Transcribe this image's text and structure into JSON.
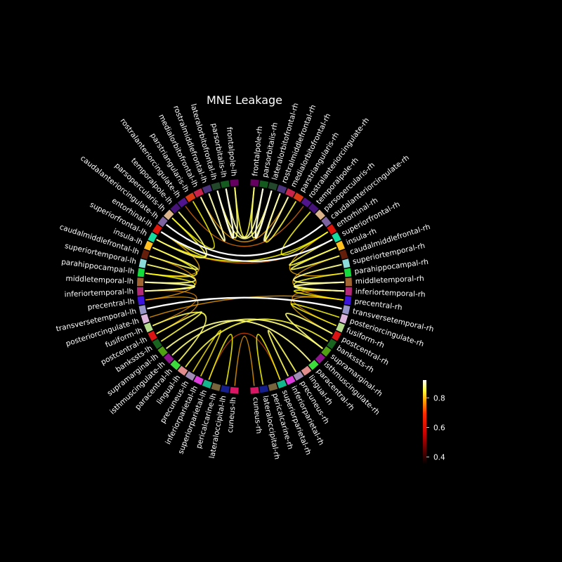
{
  "title": "MNE Leakage",
  "regions": [
    {
      "label": "frontalpole-lh",
      "color": "#64005f"
    },
    {
      "label": "parsorbitalis-lh",
      "color": "#145a1e"
    },
    {
      "label": "lateralorbitofrontal-lh",
      "color": "#23472b"
    },
    {
      "label": "rostralmiddlefrontal-lh",
      "color": "#4b327d"
    },
    {
      "label": "medialorbitofrontal-lh",
      "color": "#c8234b"
    },
    {
      "label": "parstriangularis-lh",
      "color": "#dc3c14"
    },
    {
      "label": "rostralanteriorcingulate-lh",
      "color": "#50148c"
    },
    {
      "label": "temporalpole-lh",
      "color": "#461478"
    },
    {
      "label": "parsopercularis-lh",
      "color": "#dcb48c"
    },
    {
      "label": "caudalanteriorcingulate-lh",
      "color": "#7d64a0"
    },
    {
      "label": "entorhinal-lh",
      "color": "#dc140a"
    },
    {
      "label": "superiorfrontal-lh",
      "color": "#14dca0"
    },
    {
      "label": "insula-lh",
      "color": "#ffc020"
    },
    {
      "label": "caudalmiddlefrontal-lh",
      "color": "#641e0a"
    },
    {
      "label": "superiortemporal-lh",
      "color": "#8cdcdc"
    },
    {
      "label": "parahippocampal-lh",
      "color": "#14dc3c"
    },
    {
      "label": "middletemporal-lh",
      "color": "#a06432"
    },
    {
      "label": "inferiortemporal-lh",
      "color": "#b42878"
    },
    {
      "label": "precentral-lh",
      "color": "#3c14dc"
    },
    {
      "label": "transversetemporal-lh",
      "color": "#9696c8"
    },
    {
      "label": "posteriorcingulate-lh",
      "color": "#dcb4dc"
    },
    {
      "label": "fusiform-lh",
      "color": "#b4dc8c"
    },
    {
      "label": "postcentral-lh",
      "color": "#dc1414"
    },
    {
      "label": "bankssts-lh",
      "color": "#19641e"
    },
    {
      "label": "supramarginal-lh",
      "color": "#50a014"
    },
    {
      "label": "isthmuscingulate-lh",
      "color": "#8c148c"
    },
    {
      "label": "paracentral-lh",
      "color": "#3cdc3c"
    },
    {
      "label": "lingual-lh",
      "color": "#e18c8c"
    },
    {
      "label": "precuneus-lh",
      "color": "#a08cb4"
    },
    {
      "label": "inferiorparietal-lh",
      "color": "#dc3cdc"
    },
    {
      "label": "superiorparietal-lh",
      "color": "#14b48c"
    },
    {
      "label": "pericalcarine-lh",
      "color": "#78643c"
    },
    {
      "label": "lateraloccipital-lh",
      "color": "#141e8c"
    },
    {
      "label": "cuneus-lh",
      "color": "#dc1464"
    },
    {
      "label": "cuneus-rh",
      "color": "#dc1464"
    },
    {
      "label": "lateraloccipital-rh",
      "color": "#141e8c"
    },
    {
      "label": "pericalcarine-rh",
      "color": "#78643c"
    },
    {
      "label": "superiorparietal-rh",
      "color": "#14b48c"
    },
    {
      "label": "inferiorparietal-rh",
      "color": "#dc3cdc"
    },
    {
      "label": "precuneus-rh",
      "color": "#a08cb4"
    },
    {
      "label": "lingual-rh",
      "color": "#e18c8c"
    },
    {
      "label": "paracentral-rh",
      "color": "#3cdc3c"
    },
    {
      "label": "isthmuscingulate-rh",
      "color": "#8c148c"
    },
    {
      "label": "supramarginal-rh",
      "color": "#50a014"
    },
    {
      "label": "bankssts-rh",
      "color": "#19641e"
    },
    {
      "label": "postcentral-rh",
      "color": "#dc1414"
    },
    {
      "label": "fusiform-rh",
      "color": "#b4dc8c"
    },
    {
      "label": "posteriorcingulate-rh",
      "color": "#dcb4dc"
    },
    {
      "label": "transversetemporal-rh",
      "color": "#9696c8"
    },
    {
      "label": "precentral-rh",
      "color": "#3c14dc"
    },
    {
      "label": "inferiortemporal-rh",
      "color": "#b42878"
    },
    {
      "label": "middletemporal-rh",
      "color": "#a06432"
    },
    {
      "label": "parahippocampal-rh",
      "color": "#14dc3c"
    },
    {
      "label": "superiortemporal-rh",
      "color": "#8cdcdc"
    },
    {
      "label": "caudalmiddlefrontal-rh",
      "color": "#641e0a"
    },
    {
      "label": "insula-rh",
      "color": "#ffc020"
    },
    {
      "label": "superiorfrontal-rh",
      "color": "#14dca0"
    },
    {
      "label": "entorhinal-rh",
      "color": "#dc140a"
    },
    {
      "label": "caudalanteriorcingulate-rh",
      "color": "#7d64a0"
    },
    {
      "label": "parsopercularis-rh",
      "color": "#dcb48c"
    },
    {
      "label": "temporalpole-rh",
      "color": "#461478"
    },
    {
      "label": "rostralanteriorcingulate-rh",
      "color": "#50148c"
    },
    {
      "label": "parstriangularis-rh",
      "color": "#dc3c14"
    },
    {
      "label": "medialorbitofrontal-rh",
      "color": "#c8234b"
    },
    {
      "label": "rostralmiddlefrontal-rh",
      "color": "#4b327d"
    },
    {
      "label": "lateralorbitofrontal-rh",
      "color": "#23472b"
    },
    {
      "label": "parsorbitalis-rh",
      "color": "#145a1e"
    },
    {
      "label": "frontalpole-rh",
      "color": "#64005f"
    }
  ],
  "connections": [
    {
      "a": "frontalpole-lh",
      "b": "frontalpole-rh",
      "strength": 0.75
    },
    {
      "a": "parsorbitalis-lh",
      "b": "parsorbitalis-rh",
      "strength": 0.85
    },
    {
      "a": "lateralorbitofrontal-lh",
      "b": "lateralorbitofrontal-rh",
      "strength": 0.8
    },
    {
      "a": "parsorbitalis-lh",
      "b": "lateralorbitofrontal-lh",
      "strength": 0.9
    },
    {
      "a": "frontalpole-lh",
      "b": "lateralorbitofrontal-lh",
      "strength": 0.8
    },
    {
      "a": "medialorbitofrontal-lh",
      "b": "rostralmiddlefrontal-lh",
      "strength": 0.85
    },
    {
      "a": "parsorbitalis-rh",
      "b": "lateralorbitofrontal-rh",
      "strength": 0.9
    },
    {
      "a": "frontalpole-rh",
      "b": "lateralorbitofrontal-rh",
      "strength": 0.8
    },
    {
      "a": "medialorbitofrontal-rh",
      "b": "rostralmiddlefrontal-rh",
      "strength": 0.85
    },
    {
      "a": "parstriangularis-rh",
      "b": "rostralmiddlefrontal-rh",
      "strength": 0.75
    },
    {
      "a": "caudalanteriorcingulate-lh",
      "b": "caudalanteriorcingulate-rh",
      "strength": 0.95
    },
    {
      "a": "entorhinal-lh",
      "b": "superiorfrontal-rh",
      "strength": 0.92
    },
    {
      "a": "superiorfrontal-lh",
      "b": "entorhinal-rh",
      "strength": 0.7
    },
    {
      "a": "temporalpole-lh",
      "b": "superiorfrontal-lh",
      "strength": 0.8
    },
    {
      "a": "parsopercularis-lh",
      "b": "entorhinal-lh",
      "strength": 0.75
    },
    {
      "a": "insula-lh",
      "b": "parahippocampal-lh",
      "strength": 0.72
    },
    {
      "a": "insula-lh",
      "b": "caudalmiddlefrontal-lh",
      "strength": 0.78
    },
    {
      "a": "superiortemporal-lh",
      "b": "middletemporal-lh",
      "strength": 0.8
    },
    {
      "a": "middletemporal-lh",
      "b": "inferiortemporal-lh",
      "strength": 0.85
    },
    {
      "a": "parahippocampal-lh",
      "b": "inferiortemporal-lh",
      "strength": 0.7
    },
    {
      "a": "insula-rh",
      "b": "caudalmiddlefrontal-rh",
      "strength": 0.78
    },
    {
      "a": "superiortemporal-rh",
      "b": "middletemporal-rh",
      "strength": 0.82
    },
    {
      "a": "middletemporal-rh",
      "b": "inferiortemporal-rh",
      "strength": 0.85
    },
    {
      "a": "parahippocampal-rh",
      "b": "inferiortemporal-rh",
      "strength": 0.72
    },
    {
      "a": "precentral-rh",
      "b": "inferiortemporal-rh",
      "strength": 0.7
    },
    {
      "a": "superiorfrontal-rh",
      "b": "insula-rh",
      "strength": 0.75
    },
    {
      "a": "transversetemporal-lh",
      "b": "transversetemporal-rh",
      "strength": 0.97
    },
    {
      "a": "posteriorcingulate-lh",
      "b": "precentral-rh",
      "strength": 0.6
    },
    {
      "a": "superiorfrontal-lh",
      "b": "superiorfrontal-rh",
      "strength": 0.55
    },
    {
      "a": "fusiform-lh",
      "b": "paracentral-lh",
      "strength": 0.78
    },
    {
      "a": "supramarginal-lh",
      "b": "paracentral-rh",
      "strength": 0.82
    },
    {
      "a": "isthmuscingulate-lh",
      "b": "supramarginal-rh",
      "strength": 0.8
    },
    {
      "a": "lingual-lh",
      "b": "bankssts-rh",
      "strength": 0.75
    },
    {
      "a": "inferiorparietal-rh",
      "b": "precuneus-rh",
      "strength": 0.78
    },
    {
      "a": "lateraloccipital-rh",
      "b": "superiorparietal-rh",
      "strength": 0.7
    },
    {
      "a": "cuneus-lh",
      "b": "cuneus-rh",
      "strength": 0.6
    },
    {
      "a": "lateraloccipital-lh",
      "b": "superiorparietal-lh",
      "strength": 0.7
    },
    {
      "a": "postcentral-rh",
      "b": "supramarginal-rh",
      "strength": 0.8
    },
    {
      "a": "fusiform-rh",
      "b": "posteriorcingulate-rh",
      "strength": 0.72
    },
    {
      "a": "postcentral-lh",
      "b": "bankssts-lh",
      "strength": 0.76
    },
    {
      "a": "precuneus-lh",
      "b": "inferiorparietal-lh",
      "strength": 0.68
    },
    {
      "a": "rostralanteriorcingulate-lh",
      "b": "rostralanteriorcingulate-rh",
      "strength": 0.55
    },
    {
      "a": "medialorbitofrontal-lh",
      "b": "medialorbitofrontal-rh",
      "strength": 0.6
    },
    {
      "a": "parstriangularis-lh",
      "b": "parsopercularis-lh",
      "strength": 0.7
    },
    {
      "a": "temporalpole-rh",
      "b": "entorhinal-rh",
      "strength": 0.72
    },
    {
      "a": "precentral-lh",
      "b": "postcentral-lh",
      "strength": 0.6
    },
    {
      "a": "precentral-rh",
      "b": "postcentral-rh",
      "strength": 0.62
    },
    {
      "a": "superiorparietal-lh",
      "b": "superiorparietal-rh",
      "strength": 0.5
    },
    {
      "a": "inferiortemporal-lh",
      "b": "fusiform-lh",
      "strength": 0.58
    },
    {
      "a": "inferiortemporal-rh",
      "b": "fusiform-rh",
      "strength": 0.58
    },
    {
      "a": "caudalmiddlefrontal-lh",
      "b": "precentral-lh",
      "strength": 0.6
    },
    {
      "a": "caudalmiddlefrontal-rh",
      "b": "precentral-rh",
      "strength": 0.6
    },
    {
      "a": "entorhinal-lh",
      "b": "parahippocampal-lh",
      "strength": 0.62
    },
    {
      "a": "entorhinal-rh",
      "b": "parahippocampal-rh",
      "strength": 0.62
    }
  ],
  "colorbar": {
    "cmap": "hot",
    "vmin": 0.35,
    "vmax": 0.92,
    "ticks": [
      0.4,
      0.6,
      0.8
    ],
    "tick_labels": [
      "0.4",
      "0.6",
      "0.8"
    ]
  }
}
